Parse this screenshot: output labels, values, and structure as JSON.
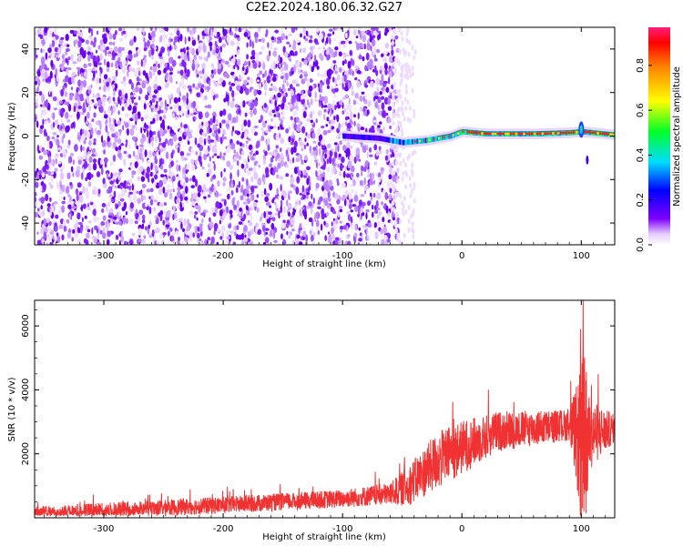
{
  "title": "C2E2.2024.180.06.32.G27",
  "chart_data": [
    {
      "type": "heatmap",
      "xlabel": "Height of straight line (km)",
      "ylabel": "Frequency (Hz)",
      "xlim": [
        -358,
        128
      ],
      "ylim": [
        -50,
        50
      ],
      "xticks": [
        "-300",
        "-200",
        "-100",
        "0",
        "100"
      ],
      "xtick_values": [
        -300,
        -200,
        -100,
        0,
        100
      ],
      "yticks": [
        "-40",
        "-20",
        "0",
        "20",
        "40"
      ],
      "ytick_values": [
        -40,
        -20,
        0,
        20,
        40
      ],
      "colorbar": {
        "label": "Normalized spectral amplitude",
        "ticks": [
          "0.0",
          "0.2",
          "0.4",
          "0.6",
          "0.8"
        ],
        "tick_values": [
          0.0,
          0.2,
          0.4,
          0.6,
          0.8
        ],
        "range": [
          0,
          0.97
        ],
        "colormap": "rainbow (purple to red)"
      },
      "features": {
        "noise_region_km": [
          -358,
          -58
        ],
        "signal_track": [
          {
            "x": -100,
            "y": 0
          },
          {
            "x": -70,
            "y": -1
          },
          {
            "x": -50,
            "y": -3
          },
          {
            "x": -30,
            "y": -2
          },
          {
            "x": -10,
            "y": 0
          },
          {
            "x": 0,
            "y": 2
          },
          {
            "x": 20,
            "y": 1
          },
          {
            "x": 60,
            "y": 1
          },
          {
            "x": 90,
            "y": 1.5
          },
          {
            "x": 100,
            "y": 2
          },
          {
            "x": 128,
            "y": 0.5
          }
        ]
      }
    },
    {
      "type": "line",
      "xlabel": "Height of straight line (km)",
      "ylabel": "SNR (10 * v/v)",
      "xlim": [
        -358,
        128
      ],
      "ylim": [
        0,
        6800
      ],
      "xticks": [
        "-300",
        "-200",
        "-100",
        "0",
        "100"
      ],
      "xtick_values": [
        -300,
        -200,
        -100,
        0,
        100
      ],
      "yticks": [
        "2000",
        "4000",
        "6000"
      ],
      "ytick_values": [
        2000,
        4000,
        6000
      ],
      "series_color": "#f03232",
      "envelope": [
        {
          "x": -358,
          "base": 150,
          "spread": 300
        },
        {
          "x": -300,
          "base": 220,
          "spread": 350
        },
        {
          "x": -200,
          "base": 400,
          "spread": 380
        },
        {
          "x": -100,
          "base": 600,
          "spread": 400
        },
        {
          "x": -60,
          "base": 750,
          "spread": 500
        },
        {
          "x": -45,
          "base": 1000,
          "spread": 900
        },
        {
          "x": -20,
          "base": 1800,
          "spread": 1300
        },
        {
          "x": 0,
          "base": 2200,
          "spread": 1200
        },
        {
          "x": 30,
          "base": 2700,
          "spread": 900
        },
        {
          "x": 60,
          "base": 2800,
          "spread": 800
        },
        {
          "x": 90,
          "base": 2900,
          "spread": 700
        },
        {
          "x": 97,
          "base": 2500,
          "spread": 2500
        },
        {
          "x": 102,
          "base": 2000,
          "spread": 4800
        },
        {
          "x": 107,
          "base": 2600,
          "spread": 1600
        },
        {
          "x": 128,
          "base": 2800,
          "spread": 600
        }
      ]
    }
  ]
}
